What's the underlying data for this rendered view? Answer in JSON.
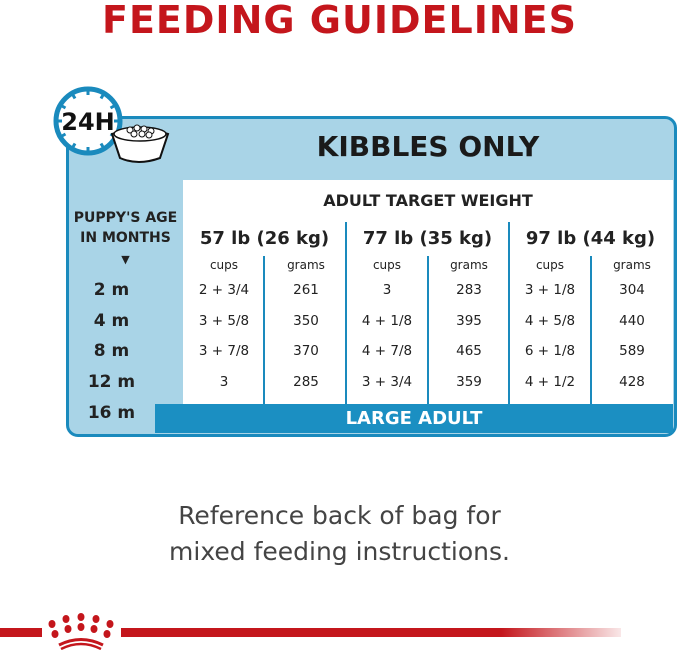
{
  "title": "FEEDING GUIDELINES",
  "clock_label": "24H",
  "header": "KIBBLES ONLY",
  "age_header": [
    "PUPPY'S AGE",
    "IN MONTHS"
  ],
  "target_label": "ADULT TARGET WEIGHT",
  "weights": [
    "57 lb (26 kg)",
    "77 lb (35 kg)",
    "97 lb (44 kg)"
  ],
  "units": [
    "cups",
    "grams"
  ],
  "rows": [
    {
      "age": "2 m",
      "vals": [
        "2 + 3/4",
        "261",
        "3",
        "283",
        "3 + 1/8",
        "304"
      ]
    },
    {
      "age": "4 m",
      "vals": [
        "3 + 5/8",
        "350",
        "4 + 1/8",
        "395",
        "4 + 5/8",
        "440"
      ]
    },
    {
      "age": "8 m",
      "vals": [
        "3 + 7/8",
        "370",
        "4 + 7/8",
        "465",
        "6 + 1/8",
        "589"
      ]
    },
    {
      "age": "12 m",
      "vals": [
        "3",
        "285",
        "3 + 3/4",
        "359",
        "4 + 1/2",
        "428"
      ]
    }
  ],
  "last_age": "16 m",
  "transition": "LARGE ADULT",
  "note": [
    "Reference back of bag for",
    "mixed feeding instructions."
  ],
  "colors": {
    "brand_red": "#c4161c",
    "blue": "#1a8abd",
    "light_blue": "#a9d4e7"
  }
}
